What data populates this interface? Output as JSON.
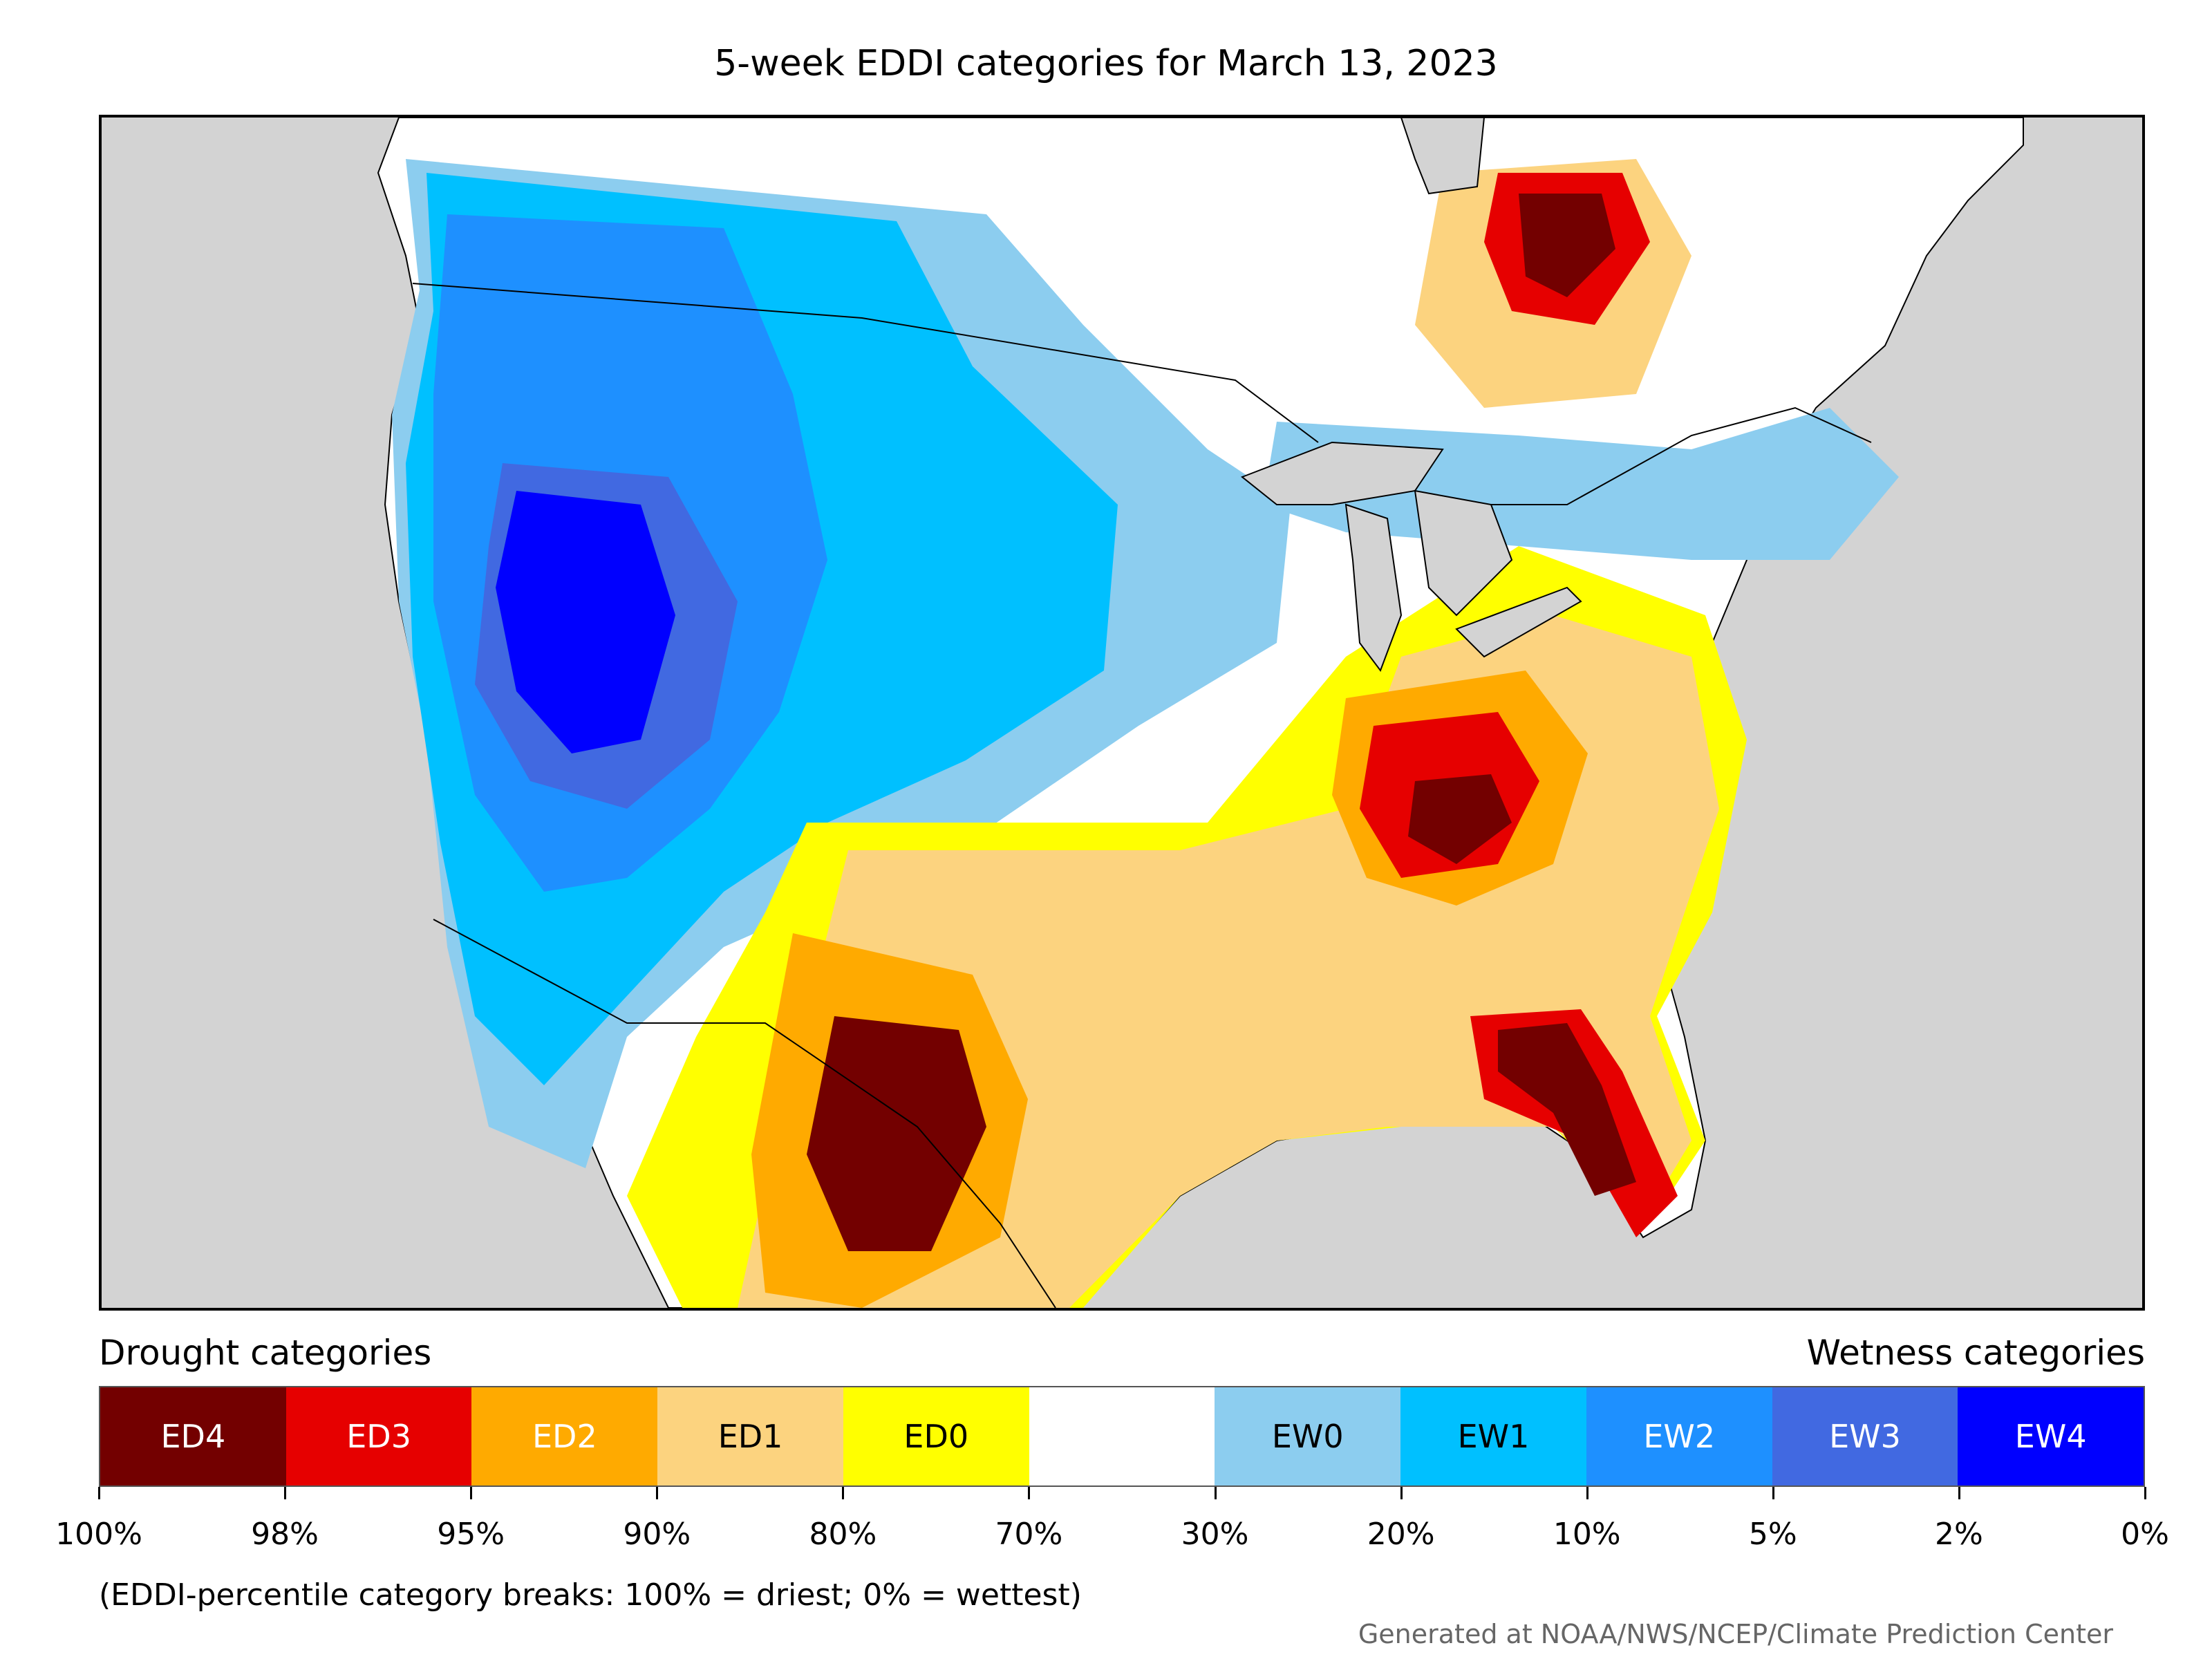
{
  "title": "5-week EDDI categories for March 13, 2023",
  "legend": {
    "drought_title": "Drought categories",
    "wetness_title": "Wetness categories",
    "categories": [
      {
        "label": "ED4",
        "color": "#730000",
        "text_color": "#ffffff"
      },
      {
        "label": "ED3",
        "color": "#e60000",
        "text_color": "#ffffff"
      },
      {
        "label": "ED2",
        "color": "#ffaa00",
        "text_color": "#ffffff"
      },
      {
        "label": "ED1",
        "color": "#fcd37f",
        "text_color": "#000000"
      },
      {
        "label": "ED0",
        "color": "#ffff00",
        "text_color": "#000000"
      },
      {
        "label": "",
        "color": "#ffffff",
        "text_color": "#000000"
      },
      {
        "label": "EW0",
        "color": "#8ccdef",
        "text_color": "#000000"
      },
      {
        "label": "EW1",
        "color": "#00c0ff",
        "text_color": "#000000"
      },
      {
        "label": "EW2",
        "color": "#1e90ff",
        "text_color": "#ffffff"
      },
      {
        "label": "EW3",
        "color": "#4169e1",
        "text_color": "#ffffff"
      },
      {
        "label": "EW4",
        "color": "#0000ff",
        "text_color": "#ffffff"
      }
    ],
    "tick_labels": [
      "100%",
      "98%",
      "95%",
      "90%",
      "80%",
      "70%",
      "30%",
      "20%",
      "10%",
      "5%",
      "2%",
      "0%"
    ]
  },
  "note": "(EDDI-percentile category breaks: 100% = driest; 0% = wettest)",
  "credit": "Generated at NOAA/NWS/NCEP/Climate Prediction Center"
}
